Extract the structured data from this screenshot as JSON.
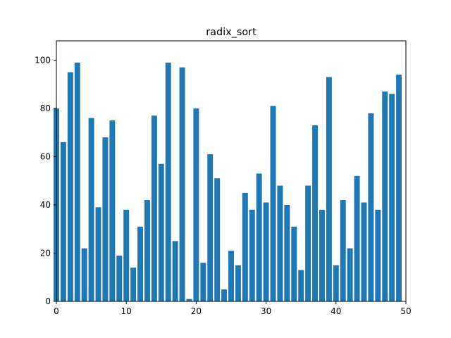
{
  "chart_data": {
    "type": "bar",
    "title": "radix_sort",
    "xlabel": "",
    "ylabel": "",
    "xlim": [
      0,
      50
    ],
    "ylim": [
      0,
      108
    ],
    "grid": false,
    "bar_color": "#1f77b4",
    "x_ticks": [
      0,
      10,
      20,
      30,
      40,
      50
    ],
    "y_ticks": [
      0,
      20,
      40,
      60,
      80,
      100
    ],
    "x": [
      0,
      1,
      2,
      3,
      4,
      5,
      6,
      7,
      8,
      9,
      10,
      11,
      12,
      13,
      14,
      15,
      16,
      17,
      18,
      19,
      20,
      21,
      22,
      23,
      24,
      25,
      26,
      27,
      28,
      29,
      30,
      31,
      32,
      33,
      34,
      35,
      36,
      37,
      38,
      39,
      40,
      41,
      42,
      43,
      44,
      45,
      46,
      47,
      48,
      49
    ],
    "values": [
      80,
      66,
      95,
      99,
      22,
      76,
      39,
      68,
      75,
      19,
      38,
      14,
      31,
      42,
      77,
      57,
      99,
      25,
      97,
      1,
      80,
      16,
      61,
      51,
      5,
      21,
      15,
      45,
      38,
      53,
      41,
      81,
      48,
      40,
      31,
      13,
      48,
      73,
      38,
      93,
      15,
      42,
      22,
      52,
      41,
      78,
      38,
      87,
      86,
      94
    ]
  }
}
